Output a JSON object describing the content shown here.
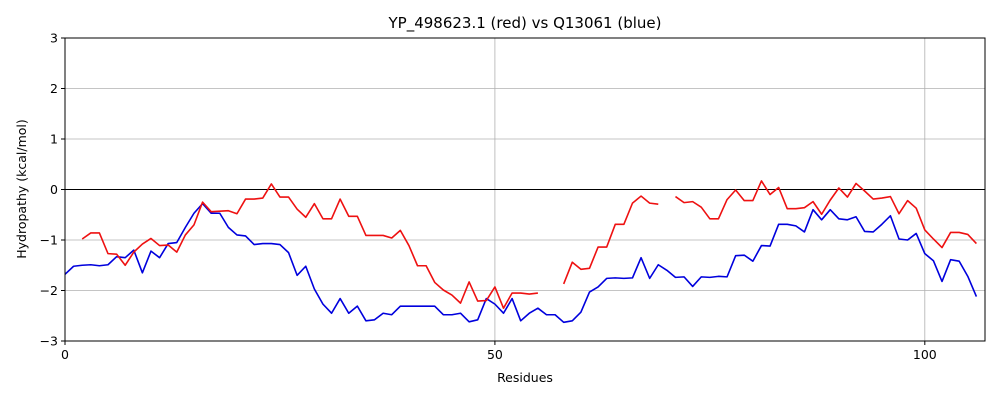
{
  "chart_data": {
    "type": "line",
    "title": "YP_498623.1 (red) vs Q13061 (blue)",
    "xlabel": "Residues",
    "ylabel": "Hydropathy (kcal/mol)",
    "xlim": [
      0,
      107
    ],
    "ylim": [
      -3,
      3
    ],
    "xticks": [
      0,
      50,
      100
    ],
    "yticks": [
      -3,
      -2,
      -1,
      0,
      1,
      2,
      3
    ],
    "grid": true,
    "series": [
      {
        "color": "#0000dd",
        "segments": [
          [
            [
              0,
              -1.68
            ],
            [
              1,
              -1.52
            ],
            [
              2,
              -1.5
            ],
            [
              3,
              -1.49
            ],
            [
              4,
              -1.51
            ],
            [
              5,
              -1.49
            ],
            [
              6,
              -1.33
            ],
            [
              7,
              -1.35
            ],
            [
              8,
              -1.2
            ],
            [
              9,
              -1.65
            ],
            [
              10,
              -1.22
            ],
            [
              11,
              -1.35
            ],
            [
              12,
              -1.07
            ],
            [
              13,
              -1.05
            ],
            [
              14,
              -0.75
            ],
            [
              15,
              -0.47
            ],
            [
              16,
              -0.28
            ],
            [
              17,
              -0.47
            ],
            [
              18,
              -0.47
            ],
            [
              19,
              -0.75
            ],
            [
              20,
              -0.9
            ],
            [
              21,
              -0.92
            ],
            [
              22,
              -1.09
            ],
            [
              23,
              -1.07
            ],
            [
              24,
              -1.07
            ],
            [
              25,
              -1.09
            ],
            [
              26,
              -1.25
            ],
            [
              27,
              -1.7
            ],
            [
              28,
              -1.52
            ],
            [
              29,
              -1.97
            ],
            [
              30,
              -2.27
            ],
            [
              31,
              -2.45
            ],
            [
              32,
              -2.16
            ],
            [
              33,
              -2.45
            ],
            [
              34,
              -2.31
            ],
            [
              35,
              -2.6
            ],
            [
              36,
              -2.58
            ],
            [
              37,
              -2.45
            ],
            [
              38,
              -2.48
            ],
            [
              39,
              -2.31
            ],
            [
              40,
              -2.31
            ],
            [
              41,
              -2.31
            ],
            [
              42,
              -2.31
            ],
            [
              43,
              -2.31
            ],
            [
              44,
              -2.48
            ],
            [
              45,
              -2.48
            ],
            [
              46,
              -2.45
            ],
            [
              47,
              -2.62
            ],
            [
              48,
              -2.58
            ],
            [
              49,
              -2.16
            ],
            [
              50,
              -2.27
            ],
            [
              51,
              -2.45
            ],
            [
              52,
              -2.16
            ],
            [
              53,
              -2.6
            ],
            [
              54,
              -2.45
            ],
            [
              55,
              -2.35
            ],
            [
              56,
              -2.48
            ],
            [
              57,
              -2.48
            ],
            [
              58,
              -2.63
            ],
            [
              59,
              -2.6
            ],
            [
              60,
              -2.43
            ],
            [
              61,
              -2.03
            ],
            [
              62,
              -1.93
            ],
            [
              63,
              -1.76
            ],
            [
              64,
              -1.75
            ],
            [
              65,
              -1.76
            ],
            [
              66,
              -1.75
            ],
            [
              67,
              -1.35
            ],
            [
              68,
              -1.76
            ],
            [
              69,
              -1.49
            ],
            [
              70,
              -1.6
            ],
            [
              71,
              -1.74
            ],
            [
              72,
              -1.73
            ],
            [
              73,
              -1.92
            ],
            [
              74,
              -1.73
            ],
            [
              75,
              -1.74
            ],
            [
              76,
              -1.72
            ],
            [
              77,
              -1.73
            ],
            [
              78,
              -1.31
            ],
            [
              79,
              -1.3
            ],
            [
              80,
              -1.42
            ],
            [
              81,
              -1.11
            ],
            [
              82,
              -1.12
            ],
            [
              83,
              -0.69
            ],
            [
              84,
              -0.69
            ],
            [
              85,
              -0.72
            ],
            [
              86,
              -0.84
            ],
            [
              87,
              -0.4
            ],
            [
              88,
              -0.6
            ],
            [
              89,
              -0.4
            ],
            [
              90,
              -0.58
            ],
            [
              91,
              -0.6
            ],
            [
              92,
              -0.54
            ],
            [
              93,
              -0.83
            ],
            [
              94,
              -0.84
            ],
            [
              95,
              -0.69
            ],
            [
              96,
              -0.52
            ],
            [
              97,
              -0.98
            ],
            [
              98,
              -1.0
            ],
            [
              99,
              -0.87
            ],
            [
              100,
              -1.27
            ],
            [
              101,
              -1.41
            ],
            [
              102,
              -1.82
            ],
            [
              103,
              -1.39
            ],
            [
              104,
              -1.42
            ],
            [
              105,
              -1.72
            ],
            [
              106,
              -2.12
            ]
          ]
        ]
      },
      {
        "color": "#ee1111",
        "segments": [
          [
            [
              2,
              -0.98
            ],
            [
              3,
              -0.86
            ],
            [
              4,
              -0.86
            ],
            [
              5,
              -1.27
            ],
            [
              6,
              -1.28
            ],
            [
              7,
              -1.5
            ],
            [
              8,
              -1.24
            ],
            [
              9,
              -1.08
            ],
            [
              10,
              -0.97
            ],
            [
              11,
              -1.11
            ],
            [
              12,
              -1.1
            ],
            [
              13,
              -1.24
            ],
            [
              14,
              -0.9
            ],
            [
              15,
              -0.7
            ],
            [
              16,
              -0.25
            ],
            [
              17,
              -0.44
            ],
            [
              18,
              -0.43
            ],
            [
              19,
              -0.42
            ],
            [
              20,
              -0.48
            ],
            [
              21,
              -0.19
            ],
            [
              22,
              -0.19
            ],
            [
              23,
              -0.17
            ],
            [
              24,
              0.11
            ],
            [
              25,
              -0.15
            ],
            [
              26,
              -0.15
            ],
            [
              27,
              -0.39
            ],
            [
              28,
              -0.55
            ],
            [
              29,
              -0.28
            ],
            [
              30,
              -0.58
            ],
            [
              31,
              -0.58
            ],
            [
              32,
              -0.19
            ],
            [
              33,
              -0.53
            ],
            [
              34,
              -0.53
            ],
            [
              35,
              -0.91
            ],
            [
              36,
              -0.91
            ],
            [
              37,
              -0.91
            ],
            [
              38,
              -0.96
            ],
            [
              39,
              -0.81
            ],
            [
              40,
              -1.11
            ],
            [
              41,
              -1.51
            ],
            [
              42,
              -1.51
            ],
            [
              43,
              -1.84
            ],
            [
              44,
              -1.99
            ],
            [
              45,
              -2.09
            ],
            [
              46,
              -2.25
            ],
            [
              47,
              -1.83
            ],
            [
              48,
              -2.21
            ],
            [
              49,
              -2.2
            ],
            [
              50,
              -1.93
            ],
            [
              51,
              -2.35
            ],
            [
              52,
              -2.05
            ],
            [
              53,
              -2.05
            ],
            [
              54,
              -2.07
            ],
            [
              55,
              -2.05
            ]
          ],
          [
            [
              58,
              -1.87
            ],
            [
              59,
              -1.44
            ],
            [
              60,
              -1.58
            ],
            [
              61,
              -1.56
            ],
            [
              62,
              -1.14
            ],
            [
              63,
              -1.14
            ],
            [
              64,
              -0.69
            ],
            [
              65,
              -0.69
            ],
            [
              66,
              -0.27
            ],
            [
              67,
              -0.13
            ],
            [
              68,
              -0.27
            ],
            [
              69,
              -0.29
            ]
          ],
          [
            [
              71,
              -0.14
            ],
            [
              72,
              -0.26
            ],
            [
              73,
              -0.24
            ],
            [
              74,
              -0.35
            ],
            [
              75,
              -0.58
            ],
            [
              76,
              -0.58
            ],
            [
              77,
              -0.2
            ],
            [
              78,
              -0.01
            ],
            [
              79,
              -0.22
            ],
            [
              80,
              -0.22
            ],
            [
              81,
              0.17
            ],
            [
              82,
              -0.1
            ],
            [
              83,
              0.04
            ],
            [
              84,
              -0.38
            ],
            [
              85,
              -0.38
            ],
            [
              86,
              -0.36
            ],
            [
              87,
              -0.24
            ],
            [
              88,
              -0.49
            ],
            [
              89,
              -0.21
            ],
            [
              90,
              0.03
            ],
            [
              91,
              -0.15
            ],
            [
              92,
              0.12
            ],
            [
              93,
              -0.03
            ],
            [
              94,
              -0.19
            ],
            [
              95,
              -0.17
            ],
            [
              96,
              -0.14
            ],
            [
              97,
              -0.48
            ],
            [
              98,
              -0.22
            ],
            [
              99,
              -0.37
            ],
            [
              100,
              -0.8
            ],
            [
              101,
              -0.98
            ],
            [
              102,
              -1.15
            ],
            [
              103,
              -0.85
            ],
            [
              104,
              -0.85
            ],
            [
              105,
              -0.89
            ],
            [
              106,
              -1.07
            ]
          ]
        ]
      }
    ]
  }
}
